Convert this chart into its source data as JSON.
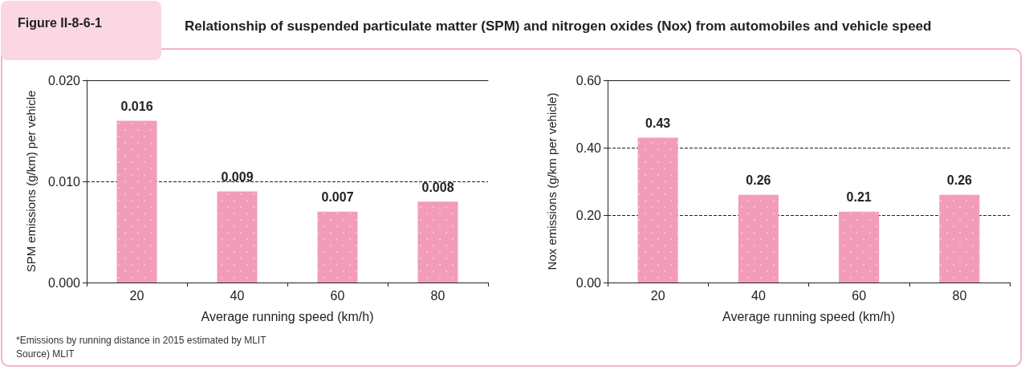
{
  "chart_data": [
    {
      "type": "bar",
      "title": "Relationship of suspended particulate matter (SPM) and nitrogen oxides (Nox) from automobiles and vehicle speed",
      "annotations": [
        "Figure II-8-6-1",
        "*Emissions by running distance in 2015 estimated by MLIT",
        "Source) MLIT"
      ],
      "xlabel": "Average running speed (km/h)",
      "ylabel": "SPM emissions (g/km) per vehicle",
      "categories": [
        "20",
        "40",
        "60",
        "80"
      ],
      "values": [
        0.016,
        0.009,
        0.007,
        0.008
      ],
      "color": "#f29cba",
      "data_labels": true,
      "ylim": [
        0,
        0.02
      ],
      "yticks": [
        {
          "value": 0,
          "label": "0.000"
        },
        {
          "value": 0.01,
          "label": "0.010"
        },
        {
          "value": 0.02,
          "label": "0.020"
        }
      ],
      "grid": "y"
    },
    {
      "type": "bar",
      "xlabel": "Average running speed (km/h)",
      "ylabel": "Nox emissions (g/km per vehicle)",
      "categories": [
        "20",
        "40",
        "60",
        "80"
      ],
      "values": [
        0.43,
        0.26,
        0.21,
        0.26
      ],
      "color": "#f29cba",
      "data_labels": true,
      "ylim": [
        0,
        0.6
      ],
      "yticks": [
        {
          "value": 0,
          "label": "0.00"
        },
        {
          "value": 0.2,
          "label": "0.20"
        },
        {
          "value": 0.4,
          "label": "0.40"
        },
        {
          "value": 0.6,
          "label": "0.60"
        }
      ],
      "grid": "y"
    }
  ]
}
